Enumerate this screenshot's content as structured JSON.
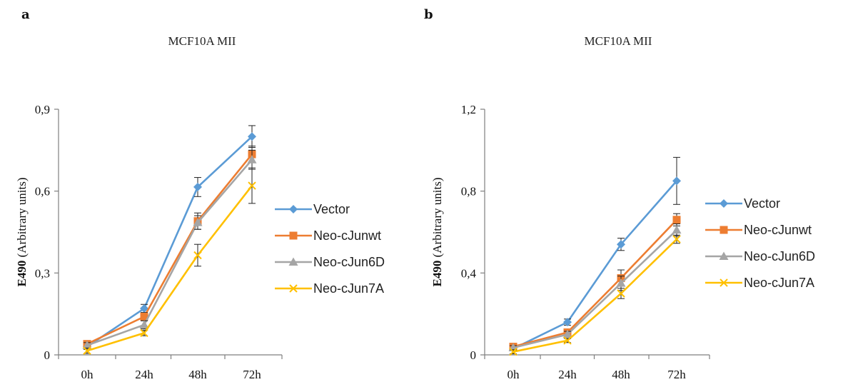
{
  "chart_data": [
    {
      "panel": "a",
      "type": "line",
      "title": "MCF10A MII",
      "ylabel_bold": "E490",
      "ylabel_rest": "(Arbitrary units)",
      "categories": [
        "0h",
        "24h",
        "48h",
        "72h"
      ],
      "y_ticks": [
        "0",
        "0,3",
        "0,6",
        "0,9"
      ],
      "ylim": [
        0,
        0.9
      ],
      "legend_position": "right",
      "series": [
        {
          "name": "Vector",
          "color": "#5B9BD5",
          "marker": "diamond",
          "values": [
            0.03,
            0.17,
            0.615,
            0.8
          ],
          "errors": [
            0.01,
            0.015,
            0.035,
            0.04
          ]
        },
        {
          "name": "Neo-cJunwt",
          "color": "#ED7D31",
          "marker": "square",
          "values": [
            0.04,
            0.14,
            0.49,
            0.735
          ],
          "errors": [
            0.01,
            0.015,
            0.03,
            0.03
          ]
        },
        {
          "name": "Neo-cJun6D",
          "color": "#A5A5A5",
          "marker": "triangle",
          "values": [
            0.035,
            0.11,
            0.485,
            0.715
          ],
          "errors": [
            0.01,
            0.015,
            0.025,
            0.035
          ]
        },
        {
          "name": "Neo-cJun7A",
          "color": "#FFC000",
          "marker": "x",
          "values": [
            0.015,
            0.08,
            0.365,
            0.62
          ],
          "errors": [
            0.01,
            0.01,
            0.04,
            0.065
          ]
        }
      ]
    },
    {
      "panel": "b",
      "type": "line",
      "title": "MCF10A MII",
      "ylabel_bold": "E490",
      "ylabel_rest": "(Arbitrary units)",
      "categories": [
        "0h",
        "24h",
        "48h",
        "72h"
      ],
      "y_ticks": [
        "0",
        "0,4",
        "0,8",
        "1,2"
      ],
      "ylim": [
        0,
        1.2
      ],
      "legend_position": "right",
      "series": [
        {
          "name": "Vector",
          "color": "#5B9BD5",
          "marker": "diamond",
          "values": [
            0.03,
            0.16,
            0.54,
            0.85
          ],
          "errors": [
            0.01,
            0.015,
            0.03,
            0.115
          ]
        },
        {
          "name": "Neo-cJunwt",
          "color": "#ED7D31",
          "marker": "square",
          "values": [
            0.04,
            0.11,
            0.375,
            0.66
          ],
          "errors": [
            0.01,
            0.015,
            0.04,
            0.03
          ]
        },
        {
          "name": "Neo-cJun6D",
          "color": "#A5A5A5",
          "marker": "triangle",
          "values": [
            0.035,
            0.1,
            0.35,
            0.61
          ],
          "errors": [
            0.01,
            0.015,
            0.035,
            0.03
          ]
        },
        {
          "name": "Neo-cJun7A",
          "color": "#FFC000",
          "marker": "x",
          "values": [
            0.015,
            0.07,
            0.3,
            0.565
          ],
          "errors": [
            0.01,
            0.01,
            0.025,
            0.02
          ]
        }
      ]
    }
  ]
}
